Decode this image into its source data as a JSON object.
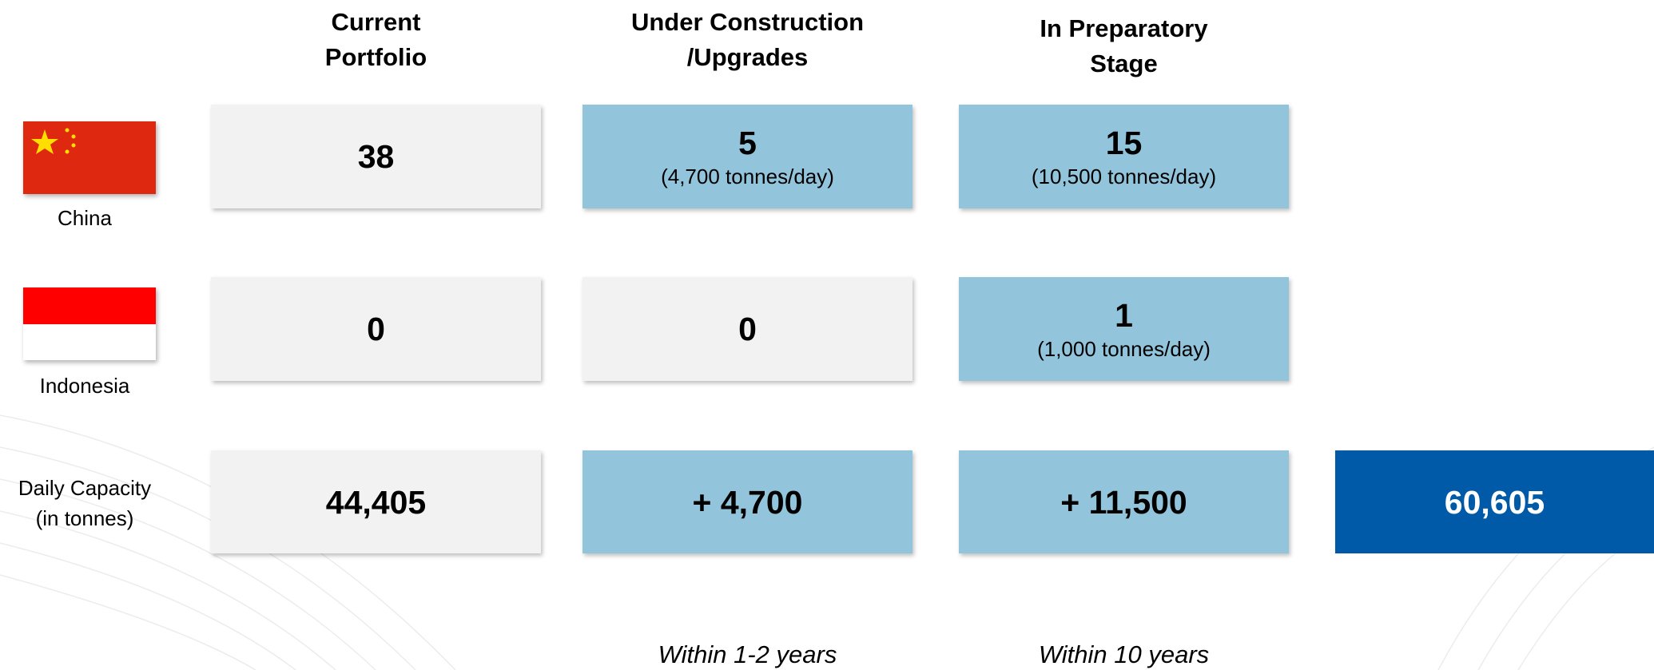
{
  "headers": [
    [
      "Current",
      "Portfolio"
    ],
    [
      "Under Construction",
      "/Upgrades"
    ],
    [
      "In Preparatory",
      "Stage"
    ]
  ],
  "rows": [
    {
      "label": [
        "China"
      ],
      "cells": [
        {
          "value": "38",
          "color": "#f2f2f2"
        },
        {
          "value": "5",
          "note": "(4,700 tonnes/day)",
          "color": "#92c5dc"
        },
        {
          "value": "15",
          "note": "(10,500 tonnes/day)",
          "color": "#92c5dc"
        }
      ]
    },
    {
      "label": [
        "Indonesia"
      ],
      "cells": [
        {
          "value": "0",
          "color": "#f2f2f2"
        },
        {
          "value": "0",
          "color": "#f2f2f2"
        },
        {
          "value": "1",
          "note": "(1,000 tonnes/day)",
          "color": "#92c5dc"
        }
      ]
    },
    {
      "label": [
        "Daily Capacity",
        "(in tonnes)"
      ],
      "cells": [
        {
          "value": "44,405",
          "color": "#f2f2f2"
        },
        {
          "value": "+ 4,700",
          "color": "#92c5dc"
        },
        {
          "value": "+ 11,500",
          "color": "#92c5dc"
        }
      ]
    }
  ],
  "total": {
    "value": "60,605",
    "color": "#005aa7"
  },
  "footers": [
    "Within 1-2 years",
    "Within 10 years"
  ]
}
